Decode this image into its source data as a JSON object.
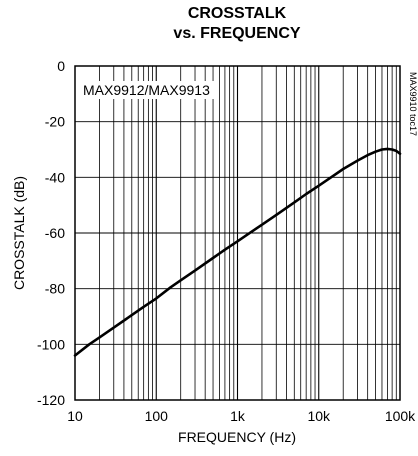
{
  "chart_data": {
    "type": "line",
    "title_line1": "CROSSTALK",
    "title_line2": "vs. FREQUENCY",
    "xlabel": "FREQUENCY (Hz)",
    "ylabel": "CROSSTALK (dB)",
    "x_scale": "log",
    "xlim": [
      10,
      100000
    ],
    "ylim": [
      -120,
      0
    ],
    "x_ticks": [
      10,
      100,
      1000,
      10000,
      100000
    ],
    "x_tick_labels": [
      "10",
      "100",
      "1k",
      "10k",
      "100k"
    ],
    "y_ticks": [
      0,
      -20,
      -40,
      -60,
      -80,
      -100,
      -120
    ],
    "y_tick_labels": [
      "0",
      "-20",
      "-40",
      "-60",
      "-80",
      "-100",
      "-120"
    ],
    "grid": true,
    "annotation": "MAX9912/MAX9913",
    "side_label": "MAX9910 toc17",
    "series": [
      {
        "x": [
          10,
          15,
          20,
          30,
          50,
          70,
          100,
          150,
          200,
          300,
          500,
          700,
          1000,
          1500,
          2000,
          3000,
          5000,
          7000,
          10000,
          15000,
          20000,
          30000,
          40000,
          50000,
          60000,
          70000,
          80000,
          90000,
          100000
        ],
        "y": [
          -104,
          -100,
          -97.5,
          -94,
          -89.5,
          -86.5,
          -83.5,
          -79.5,
          -77,
          -73.5,
          -69,
          -66,
          -63,
          -59.5,
          -57,
          -53.5,
          -49,
          -46,
          -43,
          -39.5,
          -37,
          -34,
          -32,
          -30.8,
          -30,
          -29.8,
          -30,
          -30.5,
          -31.5
        ],
        "color": "#000000"
      }
    ]
  }
}
